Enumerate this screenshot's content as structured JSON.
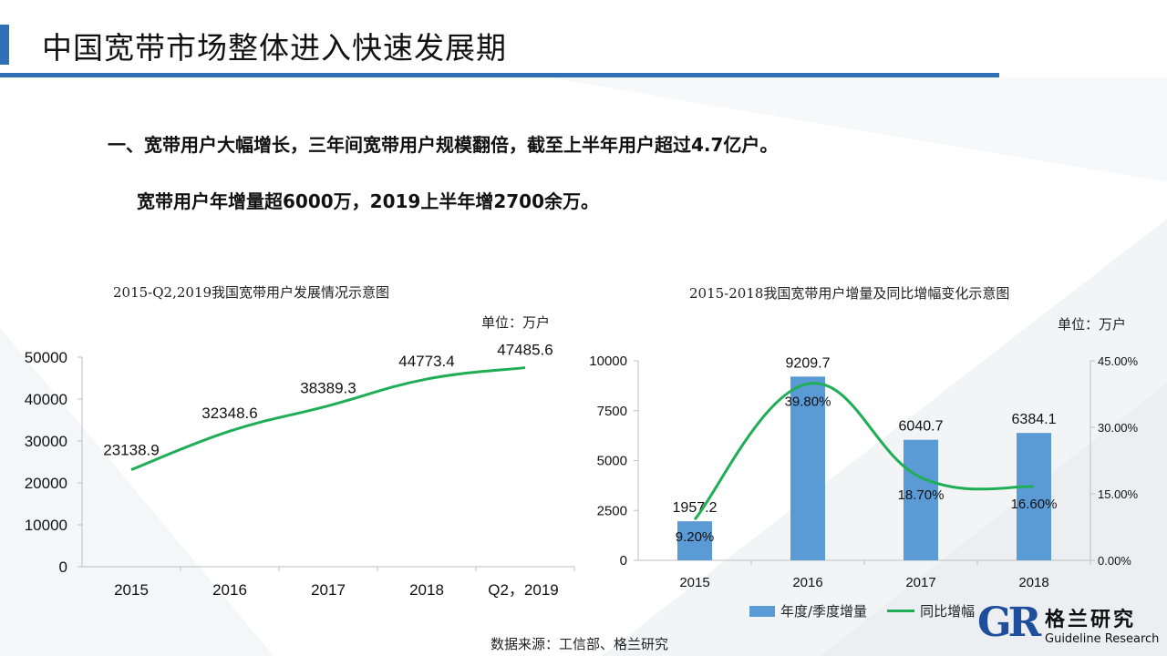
{
  "header": {
    "title": "中国宽带市场整体进入快速发展期"
  },
  "bullets": {
    "line1": "一、宽带用户大幅增长，三年间宽带用户规模翻倍，截至上半年用户超过4.7亿户。",
    "line2": "宽带用户年增量超6000万，2019上半年增2700余万。"
  },
  "chart_data": [
    {
      "type": "line",
      "title": "2015-Q2,2019我国宽带用户发展情况示意图",
      "unit": "单位：万户",
      "categories": [
        "2015",
        "2016",
        "2017",
        "2018",
        "Q2，2019"
      ],
      "series": [
        {
          "values": [
            23138.9,
            32348.6,
            38389.3,
            44773.4,
            47485.6
          ]
        }
      ],
      "data_labels": [
        "23138.9",
        "32348.6",
        "38389.3",
        "44773.4",
        "47485.6"
      ],
      "ylim": [
        0,
        50000
      ],
      "yticks": [
        "0",
        "10000",
        "20000",
        "30000",
        "40000",
        "50000"
      ],
      "line_color": "#1fae55",
      "grid": false
    },
    {
      "type": "bar",
      "title": "2015-2018我国宽带用户增量及同比增幅变化示意图",
      "unit": "单位：万户",
      "categories": [
        "2015",
        "2016",
        "2017",
        "2018"
      ],
      "series": [
        {
          "name": "年度/季度增量",
          "type": "bar",
          "values": [
            1957.2,
            9209.7,
            6040.7,
            6384.1
          ],
          "axis": "left",
          "color": "#5b9bd5"
        },
        {
          "name": "同比增幅",
          "type": "line",
          "values": [
            9.2,
            39.8,
            18.7,
            16.6
          ],
          "axis": "right",
          "color": "#1fae55"
        }
      ],
      "bar_labels": [
        "1957.2",
        "9209.7",
        "6040.7",
        "6384.1"
      ],
      "line_labels": [
        "9.20%",
        "39.80%",
        "18.70%",
        "16.60%"
      ],
      "ylim_left": [
        0,
        10000
      ],
      "yticks_left": [
        "0",
        "2500",
        "5000",
        "7500",
        "10000"
      ],
      "ylim_right": [
        0,
        45
      ],
      "yticks_right": [
        "0.00%",
        "15.00%",
        "30.00%",
        "45.00%"
      ],
      "legend_position": "bottom",
      "grid": false
    }
  ],
  "legend": {
    "bar_label": "年度/季度增量",
    "line_label": "同比增幅"
  },
  "source": "数据来源：工信部、格兰研究",
  "logo": {
    "mark": "GR",
    "cn": "格兰研究",
    "en": "Guideline Research",
    "color": "#1f4e9c"
  }
}
